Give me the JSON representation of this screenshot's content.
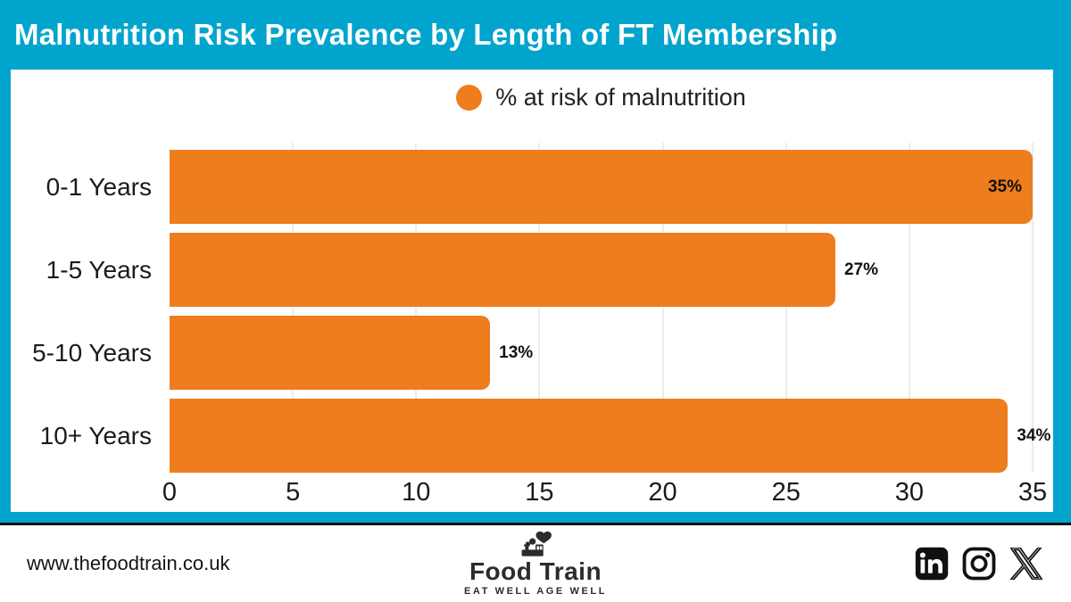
{
  "header": {
    "title": "Malnutrition Risk Prevalence by Length of FT Membership"
  },
  "legend": {
    "label": "% at risk of malnutrition"
  },
  "chart_data": {
    "type": "bar",
    "orientation": "horizontal",
    "title": "Malnutrition Risk Prevalence by Length of FT Membership",
    "categories": [
      "0-1 Years",
      "1-5 Years",
      "5-10 Years",
      "10+ Years"
    ],
    "values": [
      35,
      27,
      13,
      34
    ],
    "value_labels": [
      "35%",
      "27%",
      "13%",
      "34%"
    ],
    "label_inside": [
      true,
      false,
      false,
      false
    ],
    "series_name": "% at risk of malnutrition",
    "xlim": [
      0,
      35
    ],
    "x_ticks": [
      0,
      5,
      10,
      15,
      20,
      25,
      30,
      35
    ],
    "grid": true,
    "legend_position": "top-center",
    "bar_color": "#ee7d1d"
  },
  "colors": {
    "accent_cyan": "#00a4cc",
    "bar_orange": "#ee7d1d",
    "gridline": "#ececec",
    "text_dark": "#1b1b1b"
  },
  "footer": {
    "website": "www.thefoodtrain.co.uk",
    "logo_name": "Food Train",
    "logo_tagline": "EAT WELL AGE WELL",
    "social_icons": [
      "linkedin",
      "instagram",
      "x"
    ]
  }
}
